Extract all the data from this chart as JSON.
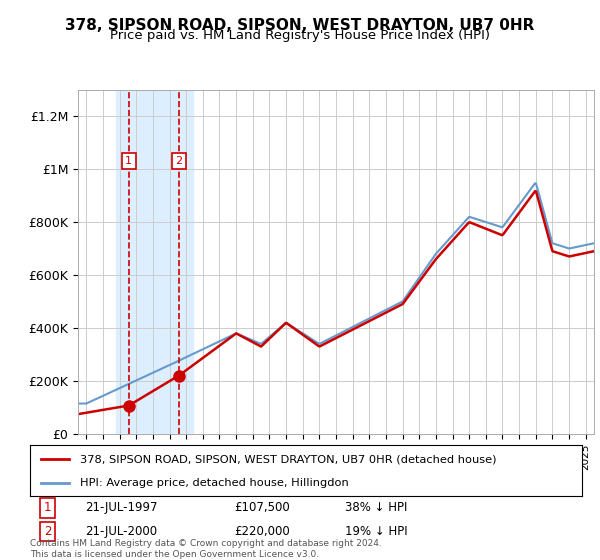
{
  "title": "378, SIPSON ROAD, SIPSON, WEST DRAYTON, UB7 0HR",
  "subtitle": "Price paid vs. HM Land Registry's House Price Index (HPI)",
  "legend_label_red": "378, SIPSON ROAD, SIPSON, WEST DRAYTON, UB7 0HR (detached house)",
  "legend_label_blue": "HPI: Average price, detached house, Hillingdon",
  "footer": "Contains HM Land Registry data © Crown copyright and database right 2024.\nThis data is licensed under the Open Government Licence v3.0.",
  "sale1_date": "21-JUL-1997",
  "sale1_price": "£107,500",
  "sale1_hpi": "38% ↓ HPI",
  "sale1_x": 1997.55,
  "sale1_y": 107500,
  "sale2_date": "21-JUL-2000",
  "sale2_price": "£220,000",
  "sale2_hpi": "19% ↓ HPI",
  "sale2_x": 2000.55,
  "sale2_y": 220000,
  "red_color": "#cc0000",
  "blue_color": "#6699cc",
  "highlight_color": "#ddeeff",
  "ylim": [
    0,
    1300000
  ],
  "yticks": [
    0,
    200000,
    400000,
    600000,
    800000,
    1000000,
    1200000
  ],
  "ytick_labels": [
    "£0",
    "£200K",
    "£400K",
    "£600K",
    "£800K",
    "£1M",
    "£1.2M"
  ],
  "xmin": 1994.5,
  "xmax": 2025.5
}
